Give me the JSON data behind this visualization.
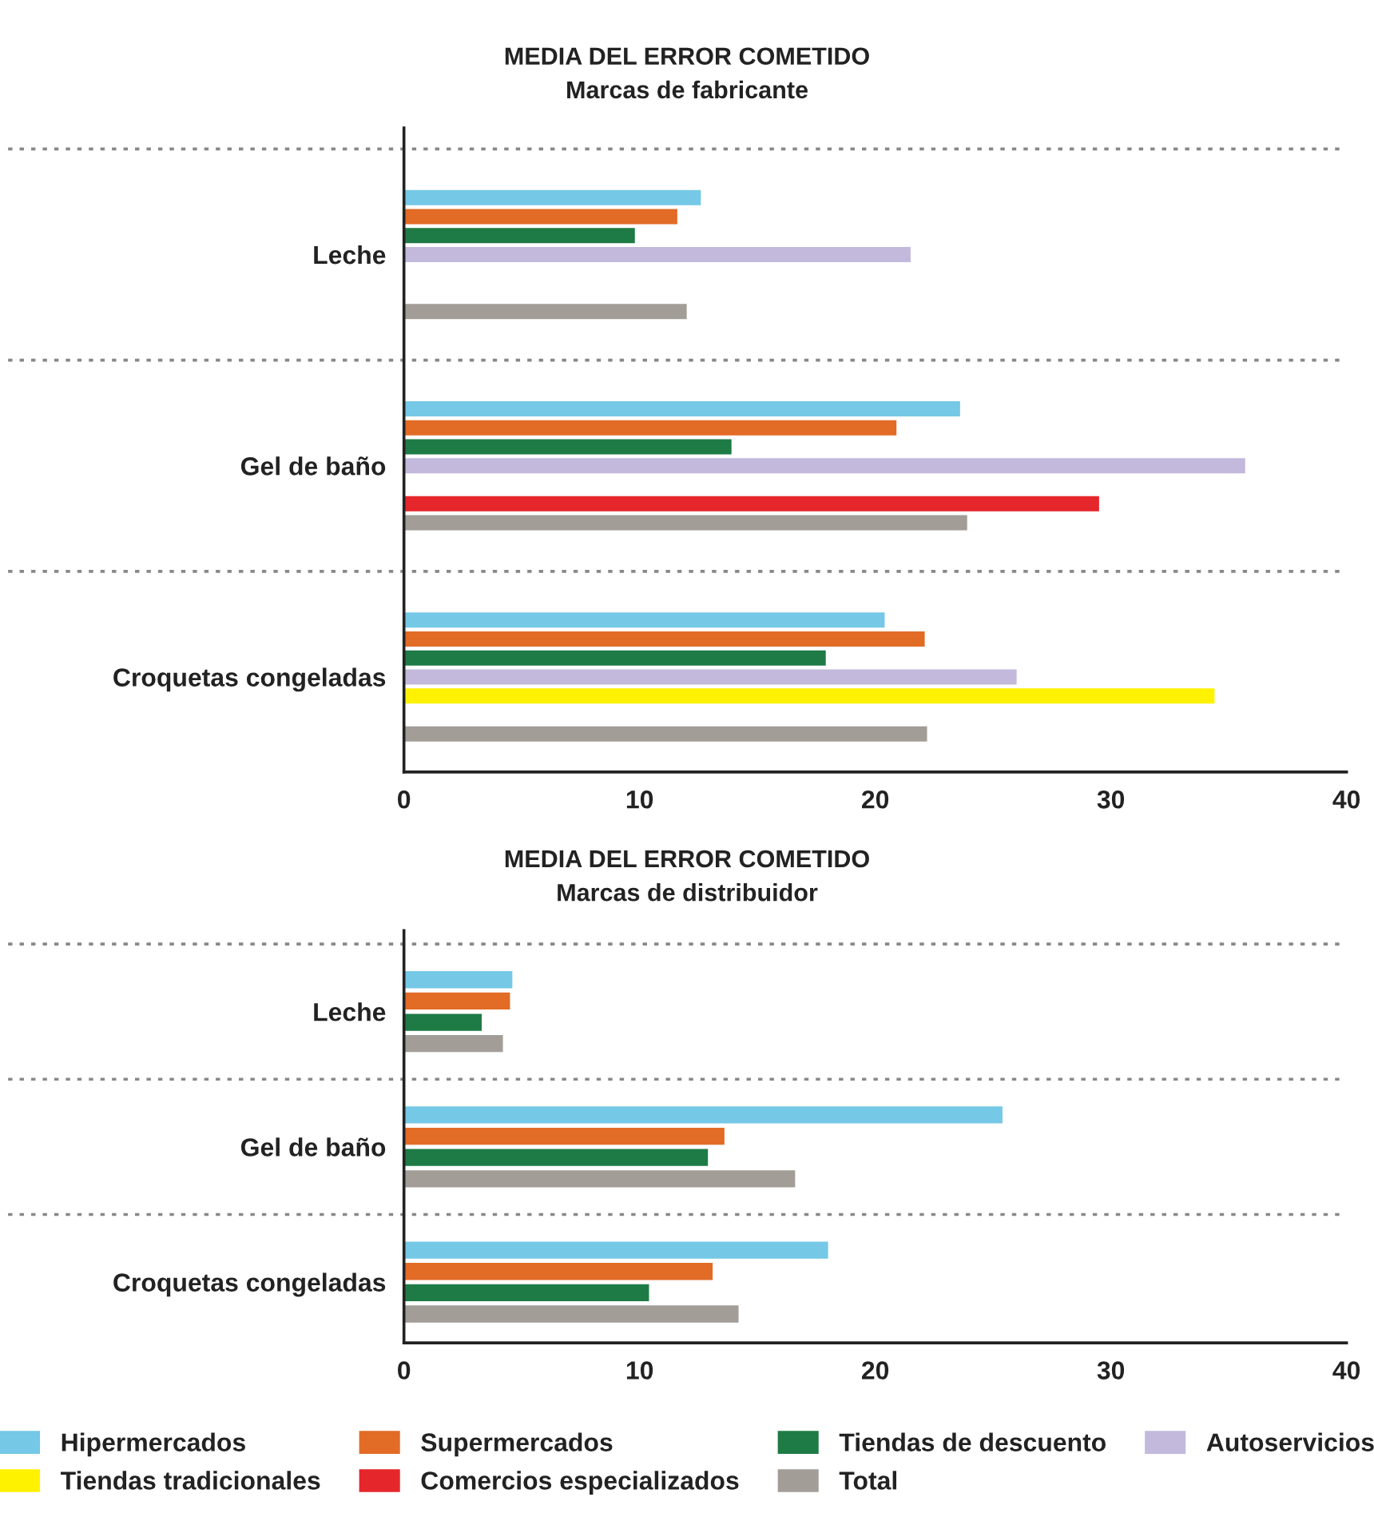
{
  "chart_data": [
    {
      "type": "bar",
      "orientation": "horizontal",
      "title": "MEDIA DEL ERROR COMETIDO",
      "subtitle": "Marcas de fabricante",
      "categories": [
        "Leche",
        "Gel de baño",
        "Croquetas congeladas"
      ],
      "xlim": [
        0,
        40
      ],
      "xticks": [
        0,
        10,
        20,
        30,
        40
      ],
      "grid": false,
      "legend": "bottom",
      "series": [
        {
          "name": "Hipermercados",
          "color": "#75c8e6",
          "values": [
            12.6,
            23.6,
            20.4
          ]
        },
        {
          "name": "Supermercados",
          "color": "#e26b26",
          "values": [
            11.6,
            20.9,
            22.1
          ]
        },
        {
          "name": "Tiendas de descuento",
          "color": "#1e7b45",
          "values": [
            9.8,
            13.9,
            17.9
          ]
        },
        {
          "name": "Autoservicios",
          "color": "#c3b9dc",
          "values": [
            21.5,
            35.7,
            26.0
          ]
        },
        {
          "name": "Tiendas tradicionales",
          "color": "#fff200",
          "values": [
            null,
            null,
            34.4
          ]
        },
        {
          "name": "Comercios especializados",
          "color": "#e5272c",
          "values": [
            null,
            29.5,
            null
          ]
        },
        {
          "name": "Total",
          "color": "#a29d97",
          "values": [
            12.0,
            23.9,
            22.2
          ]
        }
      ]
    },
    {
      "type": "bar",
      "orientation": "horizontal",
      "title": "MEDIA DEL ERROR COMETIDO",
      "subtitle": "Marcas de distribuidor",
      "categories": [
        "Leche",
        "Gel de baño",
        "Croquetas congeladas"
      ],
      "xlim": [
        0,
        40
      ],
      "xticks": [
        0,
        10,
        20,
        30,
        40
      ],
      "grid": false,
      "series": [
        {
          "color": "#75c8e6",
          "values": [
            4.6,
            25.4,
            18.0
          ]
        },
        {
          "color": "#e26b26",
          "values": [
            4.5,
            13.6,
            13.1
          ]
        },
        {
          "color": "#1e7b45",
          "values": [
            3.3,
            12.9,
            10.4
          ]
        },
        {
          "color": "#a29d97",
          "values": [
            4.2,
            16.6,
            14.2
          ]
        }
      ]
    }
  ]
}
